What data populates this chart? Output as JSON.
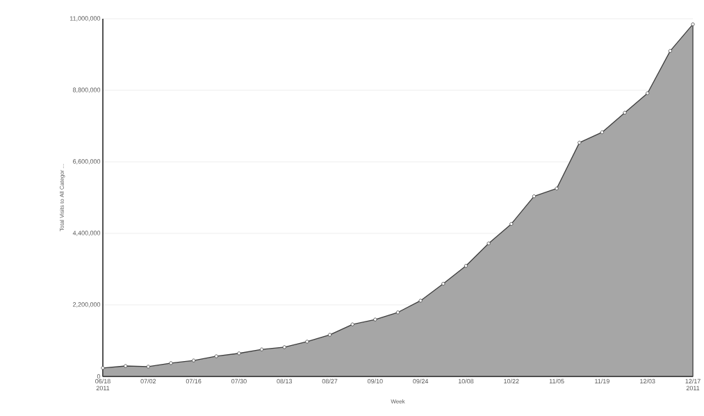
{
  "chart_data": {
    "type": "area",
    "ylabel": "Total Visits to All Categor ...",
    "xlabel": "Week",
    "x": [
      "2011-06-18",
      "2011-06-25",
      "2011-07-02",
      "2011-07-09",
      "2011-07-16",
      "2011-07-23",
      "2011-07-30",
      "2011-08-06",
      "2011-08-13",
      "2011-08-20",
      "2011-08-27",
      "2011-09-03",
      "2011-09-10",
      "2011-09-17",
      "2011-09-24",
      "2011-10-01",
      "2011-10-08",
      "2011-10-15",
      "2011-10-22",
      "2011-10-29",
      "2011-11-05",
      "2011-11-12",
      "2011-11-19",
      "2011-11-26",
      "2011-12-03",
      "2011-12-10",
      "2011-12-17"
    ],
    "series": [
      {
        "color": "#a6a6a6",
        "values": [
          260000,
          320000,
          300000,
          410000,
          490000,
          620000,
          710000,
          830000,
          900000,
          1070000,
          1280000,
          1600000,
          1750000,
          1970000,
          2330000,
          2850000,
          3400000,
          4090000,
          4690000,
          5540000,
          5780000,
          7190000,
          7510000,
          8110000,
          8710000,
          10010000,
          10830000
        ]
      }
    ],
    "xlim": [
      "2011-06-18",
      "2011-12-17"
    ],
    "xticks": [
      {
        "value": "2011-06-18",
        "label": "06/18 2011"
      },
      {
        "value": "2011-07-02",
        "label": "07/02"
      },
      {
        "value": "2011-07-16",
        "label": "07/16"
      },
      {
        "value": "2011-07-30",
        "label": "07/30"
      },
      {
        "value": "2011-08-13",
        "label": "08/13"
      },
      {
        "value": "2011-08-27",
        "label": "08/27"
      },
      {
        "value": "2011-09-10",
        "label": "09/10"
      },
      {
        "value": "2011-09-24",
        "label": "09/24"
      },
      {
        "value": "2011-10-08",
        "label": "10/08"
      },
      {
        "value": "2011-10-22",
        "label": "10/22"
      },
      {
        "value": "2011-11-05",
        "label": "11/05"
      },
      {
        "value": "2011-11-19",
        "label": "11/19"
      },
      {
        "value": "2011-12-03",
        "label": "12/03"
      },
      {
        "value": "2011-12-17",
        "label": "12/17 2011"
      }
    ],
    "ylim": [
      0,
      11000000
    ],
    "yticks": [
      0,
      {
        "value": 2200000,
        "label": "2,200,000"
      },
      {
        "value": 4400000,
        "label": "4,400,000"
      },
      {
        "value": 6600000,
        "label": "6,600,000"
      },
      {
        "value": 8800000,
        "label": "8,800,000"
      },
      {
        "value": 11000000,
        "label": "11,000,000"
      }
    ],
    "grid": "y",
    "marker": "circle"
  }
}
